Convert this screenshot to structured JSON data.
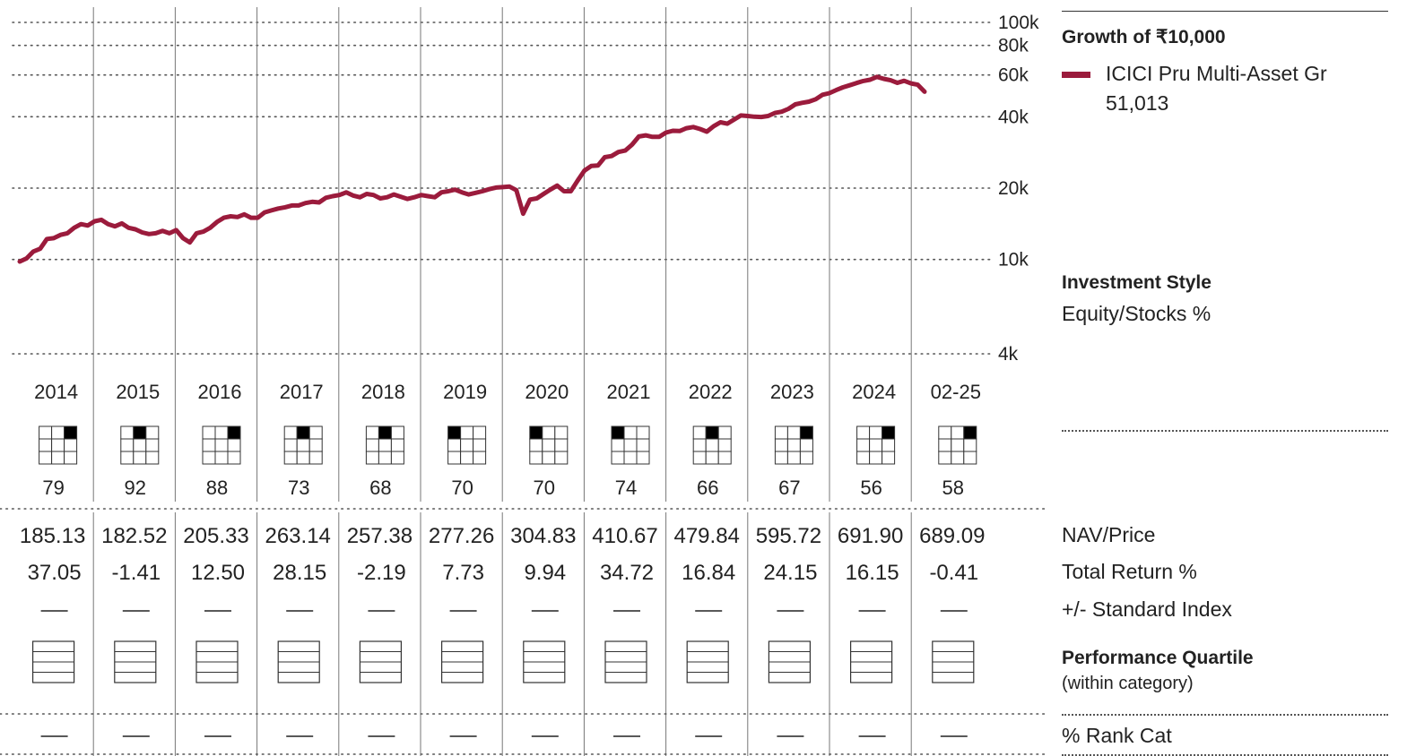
{
  "chart_data": {
    "type": "line",
    "title": "Growth of  ₹10,000",
    "series": [
      {
        "name": "ICICI Pru Multi-Asset Gr",
        "end_value": "51,013",
        "color": "#9b1b3c",
        "x": [
          "2014-01",
          "2014-02",
          "2014-03",
          "2014-04",
          "2014-05",
          "2014-06",
          "2014-07",
          "2014-08",
          "2014-09",
          "2014-10",
          "2014-11",
          "2014-12",
          "2015-01",
          "2015-02",
          "2015-03",
          "2015-04",
          "2015-05",
          "2015-06",
          "2015-07",
          "2015-08",
          "2015-09",
          "2015-10",
          "2015-11",
          "2015-12",
          "2016-01",
          "2016-02",
          "2016-03",
          "2016-04",
          "2016-05",
          "2016-06",
          "2016-07",
          "2016-08",
          "2016-09",
          "2016-10",
          "2016-11",
          "2016-12",
          "2017-01",
          "2017-02",
          "2017-03",
          "2017-04",
          "2017-05",
          "2017-06",
          "2017-07",
          "2017-08",
          "2017-09",
          "2017-10",
          "2017-11",
          "2017-12",
          "2018-01",
          "2018-02",
          "2018-03",
          "2018-04",
          "2018-05",
          "2018-06",
          "2018-07",
          "2018-08",
          "2018-09",
          "2018-10",
          "2018-11",
          "2018-12",
          "2019-01",
          "2019-02",
          "2019-03",
          "2019-04",
          "2019-05",
          "2019-06",
          "2019-07",
          "2019-08",
          "2019-09",
          "2019-10",
          "2019-11",
          "2019-12",
          "2020-01",
          "2020-02",
          "2020-03",
          "2020-04",
          "2020-05",
          "2020-06",
          "2020-07",
          "2020-08",
          "2020-09",
          "2020-10",
          "2020-11",
          "2020-12",
          "2021-01",
          "2021-02",
          "2021-03",
          "2021-04",
          "2021-05",
          "2021-06",
          "2021-07",
          "2021-08",
          "2021-09",
          "2021-10",
          "2021-11",
          "2021-12",
          "2022-01",
          "2022-02",
          "2022-03",
          "2022-04",
          "2022-05",
          "2022-06",
          "2022-07",
          "2022-08",
          "2022-09",
          "2022-10",
          "2022-11",
          "2022-12",
          "2023-01",
          "2023-02",
          "2023-03",
          "2023-04",
          "2023-05",
          "2023-06",
          "2023-07",
          "2023-08",
          "2023-09",
          "2023-10",
          "2023-11",
          "2023-12",
          "2024-01",
          "2024-02",
          "2024-03",
          "2024-04",
          "2024-05",
          "2024-06",
          "2024-07",
          "2024-08",
          "2024-09",
          "2024-10",
          "2024-11",
          "2024-12",
          "2025-01",
          "2025-02"
        ],
        "values": [
          9800,
          10100,
          10800,
          11100,
          12200,
          12300,
          12700,
          12900,
          13600,
          14100,
          13900,
          14500,
          14700,
          14100,
          13800,
          14200,
          13600,
          13400,
          13000,
          12800,
          12900,
          13200,
          12900,
          13300,
          12300,
          11800,
          12900,
          13100,
          13600,
          14400,
          15000,
          15200,
          15100,
          15500,
          15000,
          15000,
          15800,
          16100,
          16400,
          16600,
          16900,
          16900,
          17300,
          17500,
          17400,
          18200,
          18500,
          18700,
          19200,
          18600,
          18300,
          18900,
          18700,
          18100,
          18300,
          18800,
          18400,
          18000,
          18300,
          18700,
          18500,
          18300,
          19200,
          19400,
          19700,
          19200,
          18800,
          19100,
          19400,
          19800,
          20100,
          20200,
          20300,
          19600,
          15600,
          17900,
          18100,
          18900,
          19700,
          20500,
          19400,
          19400,
          21500,
          23700,
          24800,
          24900,
          27000,
          27300,
          28400,
          28800,
          30500,
          33000,
          33400,
          32900,
          32900,
          34300,
          34900,
          34800,
          35800,
          36200,
          35500,
          34600,
          36500,
          37900,
          37400,
          38900,
          40500,
          40300,
          40000,
          39900,
          40300,
          41500,
          42000,
          43200,
          45100,
          45800,
          46300,
          47400,
          49500,
          50300,
          51800,
          53200,
          54300,
          55500,
          56600,
          57300,
          58900,
          57800,
          57000,
          55600,
          56700,
          55300,
          54600,
          51013
        ]
      }
    ],
    "y_axis": {
      "scale": "log",
      "ylim": [
        4000,
        100000
      ],
      "ticks": [
        {
          "value": 100000,
          "label": "100k"
        },
        {
          "value": 80000,
          "label": "80k"
        },
        {
          "value": 60000,
          "label": "60k"
        },
        {
          "value": 40000,
          "label": "40k"
        },
        {
          "value": 20000,
          "label": "20k"
        },
        {
          "value": 10000,
          "label": "10k"
        },
        {
          "value": 4000,
          "label": "4k"
        }
      ]
    },
    "x_categories": [
      "2014",
      "2015",
      "2016",
      "2017",
      "2018",
      "2019",
      "2020",
      "2021",
      "2022",
      "2023",
      "2024",
      "02-25"
    ],
    "style_boxes": [
      {
        "row": 0,
        "col": 2,
        "value": "79"
      },
      {
        "row": 0,
        "col": 1,
        "value": "92"
      },
      {
        "row": 0,
        "col": 2,
        "value": "88"
      },
      {
        "row": 0,
        "col": 1,
        "value": "73"
      },
      {
        "row": 0,
        "col": 1,
        "value": "68"
      },
      {
        "row": 0,
        "col": 0,
        "value": "70"
      },
      {
        "row": 0,
        "col": 0,
        "value": "70"
      },
      {
        "row": 0,
        "col": 0,
        "value": "74"
      },
      {
        "row": 0,
        "col": 1,
        "value": "66"
      },
      {
        "row": 0,
        "col": 2,
        "value": "67"
      },
      {
        "row": 0,
        "col": 2,
        "value": "56"
      },
      {
        "row": 0,
        "col": 2,
        "value": "58"
      }
    ],
    "nav_price": [
      "185.13",
      "182.52",
      "205.33",
      "263.14",
      "257.38",
      "277.26",
      "304.83",
      "410.67",
      "479.84",
      "595.72",
      "691.90",
      "689.09"
    ],
    "total_return": [
      "37.05",
      "-1.41",
      "12.50",
      "28.15",
      "-2.19",
      "7.73",
      "9.94",
      "34.72",
      "16.84",
      "24.15",
      "16.15",
      "-0.41"
    ],
    "vs_index": [
      "—",
      "—",
      "—",
      "—",
      "—",
      "—",
      "—",
      "—",
      "—",
      "—",
      "—",
      "—"
    ],
    "rank_cat": [
      "—",
      "—",
      "—",
      "—",
      "—",
      "—",
      "—",
      "—",
      "—",
      "—",
      "—",
      "—"
    ],
    "grid": true
  },
  "legend": {
    "title": "Growth of  ₹10,000",
    "series_name": "ICICI Pru Multi-Asset Gr",
    "series_value": "51,013"
  },
  "labels": {
    "investment_style": "Investment Style",
    "equity_stocks": "Equity/Stocks %",
    "nav_price": "NAV/Price",
    "total_return": "Total Return %",
    "vs_index": "+/- Standard Index",
    "perf_quartile": "Performance Quartile",
    "perf_quartile_sub": "(within category)",
    "rank_cat": "% Rank Cat"
  }
}
